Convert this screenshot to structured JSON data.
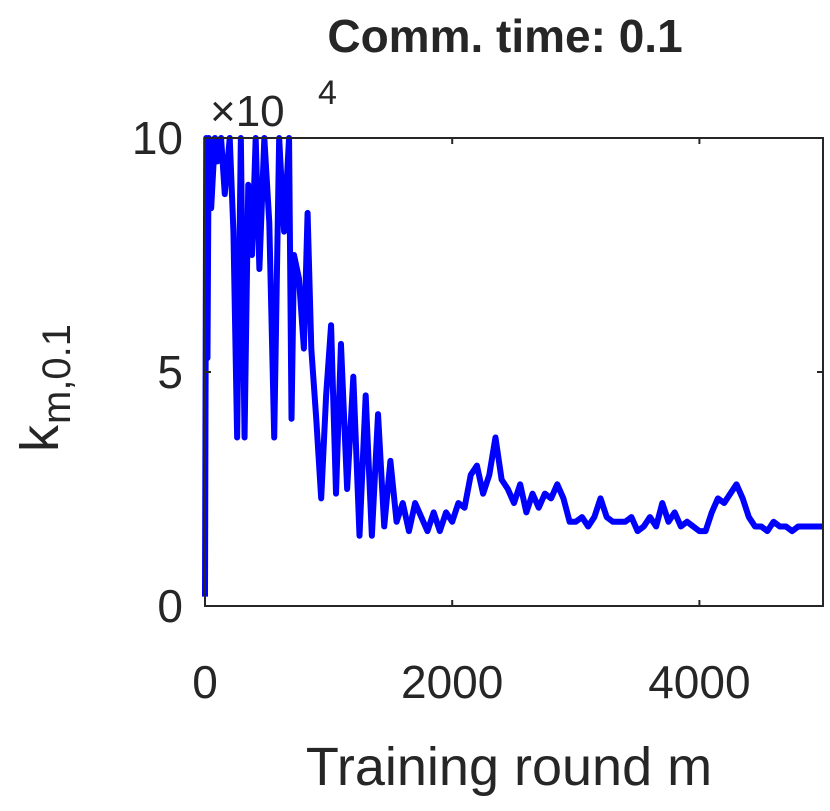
{
  "chart_data": {
    "type": "line",
    "title": "Comm. time: 0.1",
    "xlabel": "Training round m",
    "ylabel": "k",
    "ylabel_subscript": "m,0.1",
    "y_scale_label": "×10",
    "y_scale_exponent": "4",
    "xlim": [
      0,
      5000
    ],
    "xticks": [
      0,
      2000,
      4000
    ],
    "ylim": [
      0,
      10
    ],
    "yticks": [
      0,
      5,
      10
    ],
    "grid": false,
    "series": [
      {
        "color": "#0000ff",
        "x": [
          0,
          10,
          20,
          30,
          50,
          80,
          100,
          130,
          160,
          200,
          230,
          260,
          290,
          320,
          350,
          380,
          410,
          440,
          480,
          520,
          560,
          600,
          640,
          680,
          700,
          720,
          760,
          800,
          830,
          860,
          900,
          940,
          980,
          1020,
          1060,
          1100,
          1150,
          1200,
          1250,
          1300,
          1350,
          1400,
          1450,
          1500,
          1550,
          1600,
          1650,
          1700,
          1750,
          1800,
          1850,
          1900,
          1950,
          2000,
          2050,
          2100,
          2150,
          2200,
          2250,
          2300,
          2350,
          2400,
          2450,
          2500,
          2550,
          2600,
          2650,
          2700,
          2750,
          2800,
          2850,
          2900,
          2950,
          3000,
          3050,
          3100,
          3150,
          3200,
          3250,
          3300,
          3350,
          3400,
          3450,
          3500,
          3550,
          3600,
          3650,
          3700,
          3750,
          3800,
          3850,
          3900,
          3950,
          4000,
          4050,
          4100,
          4150,
          4200,
          4250,
          4300,
          4350,
          4400,
          4450,
          4500,
          4550,
          4600,
          4650,
          4700,
          4750,
          4800,
          4850,
          4900,
          4950,
          5000
        ],
        "values": [
          0.2,
          10,
          5.3,
          10,
          8.5,
          10,
          9.5,
          10,
          8.8,
          10,
          8.0,
          3.6,
          10,
          3.6,
          9.0,
          7.5,
          10,
          7.2,
          10,
          8.2,
          3.6,
          10,
          8.0,
          10,
          4.0,
          7.5,
          7.0,
          5.5,
          8.4,
          5.5,
          4.0,
          2.3,
          4.5,
          6.0,
          2.4,
          5.6,
          2.5,
          4.9,
          1.5,
          4.5,
          1.5,
          4.1,
          1.7,
          3.1,
          1.8,
          2.2,
          1.6,
          2.2,
          1.9,
          1.6,
          2.0,
          1.6,
          2.0,
          1.8,
          2.2,
          2.1,
          2.8,
          3.0,
          2.4,
          2.8,
          3.6,
          2.7,
          2.5,
          2.2,
          2.6,
          2.0,
          2.4,
          2.1,
          2.4,
          2.3,
          2.6,
          2.3,
          1.8,
          1.8,
          1.9,
          1.7,
          1.9,
          2.3,
          1.9,
          1.8,
          1.8,
          1.8,
          1.9,
          1.6,
          1.7,
          1.9,
          1.7,
          2.2,
          1.8,
          2.0,
          1.7,
          1.8,
          1.7,
          1.6,
          1.6,
          2.0,
          2.3,
          2.2,
          2.4,
          2.6,
          2.3,
          1.9,
          1.7,
          1.7,
          1.6,
          1.8,
          1.7,
          1.7,
          1.6,
          1.7,
          1.7,
          1.7,
          1.7,
          1.7
        ]
      }
    ]
  }
}
